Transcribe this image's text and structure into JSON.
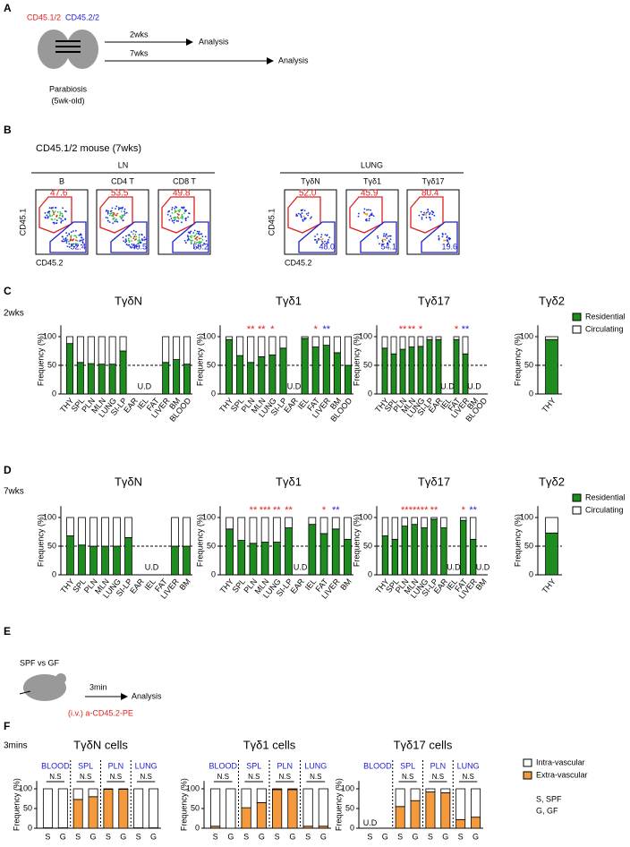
{
  "panel_labels": [
    "A",
    "B",
    "C",
    "D",
    "E",
    "F"
  ],
  "row_labels": [
    "2wks",
    "7wks",
    "3mins"
  ],
  "panel_a": {
    "donor1": "CD45.1/2",
    "donor2": "CD45.2/2",
    "arrows": [
      {
        "label": "2wks",
        "target": "Analysis"
      },
      {
        "label": "7wks",
        "target": "Analysis"
      }
    ],
    "caption": "Parabiosis",
    "caption2": "(5wk-old)"
  },
  "panel_b": {
    "title": "CD45.1/2 mouse (7wks)",
    "groups": [
      {
        "label": "LN",
        "y_label": "CD45.1",
        "x_label": "CD45.2",
        "plots": [
          {
            "label": "B",
            "top": "47.6",
            "bottom": "52.4"
          },
          {
            "label": "CD4 T",
            "top": "53.5",
            "bottom": "46.5"
          },
          {
            "label": "CD8 T",
            "top": "49.8",
            "bottom": "50.2"
          }
        ]
      },
      {
        "label": "LUNG",
        "y_label": "CD45.1",
        "x_label": "CD45.2",
        "plots": [
          {
            "label": "TγδN",
            "top": "52.0",
            "bottom": "48.0"
          },
          {
            "label": "Tγδ1",
            "top": "45.9",
            "bottom": "54.1"
          },
          {
            "label": "Tγδ17",
            "top": "80.4",
            "bottom": "19.6"
          }
        ]
      }
    ]
  },
  "panel_e": {
    "title": "SPF vs GF",
    "arrow_label": "3min",
    "target": "Analysis",
    "injection": "(i.v.) a-CD45.2-PE"
  },
  "chart_data": [
    {
      "type": "bar",
      "stacked": true,
      "title": "TγδN",
      "y_label": "Frequency (%)",
      "ylim": [
        0,
        120
      ],
      "yticks": [
        0,
        50,
        100
      ],
      "refline": 50,
      "categories": [
        "THY",
        "SPL",
        "PLN",
        "MLN",
        "LUNG",
        "SI-LP",
        "EAR",
        "IEL",
        "FAT",
        "LIVER",
        "BM",
        "BLOOD"
      ],
      "series": [
        {
          "color": "#1e8c1e",
          "values": [
            88,
            55,
            53,
            52,
            52,
            75,
            null,
            null,
            null,
            55,
            60,
            52
          ]
        },
        {
          "color": "#ffffff",
          "values": [
            12,
            45,
            47,
            48,
            48,
            25,
            null,
            null,
            null,
            45,
            40,
            48
          ]
        }
      ],
      "notes": [
        null,
        null,
        null,
        null,
        null,
        null,
        null,
        "U.D",
        null,
        null,
        null,
        null
      ],
      "note_colors": [
        null,
        null,
        null,
        null,
        null,
        null,
        null,
        "#000000",
        null,
        null,
        null,
        null
      ]
    },
    {
      "type": "bar",
      "stacked": true,
      "title": "Tγδ1",
      "y_label": "Frequency (%)",
      "ylim": [
        0,
        120
      ],
      "yticks": [
        0,
        50,
        100
      ],
      "refline": 50,
      "categories": [
        "THY",
        "SPL",
        "PLN",
        "MLN",
        "LUNG",
        "SI-LP",
        "EAR",
        "IEL",
        "FAT",
        "LIVER",
        "BM",
        "BLOOD"
      ],
      "series": [
        {
          "color": "#1e8c1e",
          "values": [
            95,
            67,
            55,
            65,
            68,
            80,
            null,
            97,
            82,
            85,
            72,
            50
          ]
        },
        {
          "color": "#ffffff",
          "values": [
            5,
            33,
            45,
            35,
            32,
            20,
            null,
            3,
            18,
            15,
            28,
            50
          ]
        }
      ],
      "notes": [
        null,
        null,
        "**",
        "**",
        "*",
        null,
        "U.D",
        null,
        "*",
        "**",
        null,
        null
      ],
      "note_colors": [
        null,
        null,
        "#e02020",
        "#e02020",
        "#e02020",
        null,
        "#000000",
        null,
        "#e02020",
        "#2020d0",
        null,
        null
      ]
    },
    {
      "type": "bar",
      "stacked": true,
      "title": "Tγδ17",
      "y_label": "Frequency (%)",
      "ylim": [
        0,
        120
      ],
      "yticks": [
        0,
        50,
        100
      ],
      "refline": 50,
      "categories": [
        "THY",
        "SPL",
        "PLN",
        "MLN",
        "LUNG",
        "SI-LP",
        "EAR",
        "IEL",
        "FAT",
        "LIVER",
        "BM",
        "BLOOD"
      ],
      "series": [
        {
          "color": "#1e8c1e",
          "values": [
            80,
            70,
            78,
            82,
            83,
            95,
            95,
            null,
            95,
            70,
            null,
            null
          ]
        },
        {
          "color": "#ffffff",
          "values": [
            20,
            30,
            22,
            18,
            17,
            5,
            5,
            null,
            5,
            30,
            null,
            null
          ]
        }
      ],
      "notes": [
        null,
        null,
        "**",
        "**",
        "*",
        null,
        null,
        "U.D",
        "*",
        "**",
        "U.D",
        null
      ],
      "note_colors": [
        null,
        null,
        "#e02020",
        "#e02020",
        "#e02020",
        null,
        null,
        "#000000",
        "#e02020",
        "#2020d0",
        "#000000",
        null
      ]
    },
    {
      "type": "bar",
      "stacked": true,
      "title": "Tγδ2",
      "y_label": "Frequency (%)",
      "ylim": [
        0,
        120
      ],
      "yticks": [
        0,
        50,
        100
      ],
      "refline": 50,
      "categories": [
        "THY"
      ],
      "legend": "right",
      "series": [
        {
          "name": "Residential",
          "color": "#1e8c1e",
          "values": [
            95
          ]
        },
        {
          "name": "Circulating",
          "color": "#ffffff",
          "values": [
            5
          ]
        }
      ]
    },
    {
      "type": "bar",
      "stacked": true,
      "title": "TγδN",
      "y_label": "Frequency (%)",
      "ylim": [
        0,
        120
      ],
      "yticks": [
        0,
        50,
        100
      ],
      "refline": 50,
      "categories": [
        "THY",
        "SPL",
        "PLN",
        "MLN",
        "LUNG",
        "SI-LP",
        "EAR",
        "IEL",
        "FAT",
        "LIVER",
        "BM"
      ],
      "series": [
        {
          "color": "#1e8c1e",
          "values": [
            68,
            52,
            50,
            50,
            50,
            65,
            null,
            null,
            null,
            50,
            50
          ]
        },
        {
          "color": "#ffffff",
          "values": [
            32,
            48,
            50,
            50,
            50,
            35,
            null,
            null,
            null,
            50,
            50
          ]
        }
      ],
      "notes": [
        null,
        null,
        null,
        null,
        null,
        null,
        null,
        "U.D",
        null,
        null,
        null
      ],
      "note_colors": [
        null,
        null,
        null,
        null,
        null,
        null,
        null,
        "#000000",
        null,
        null,
        null
      ]
    },
    {
      "type": "bar",
      "stacked": true,
      "title": "Tγδ1",
      "y_label": "Frequency (%)",
      "ylim": [
        0,
        120
      ],
      "yticks": [
        0,
        50,
        100
      ],
      "refline": 50,
      "categories": [
        "THY",
        "SPL",
        "PLN",
        "MLN",
        "LUNG",
        "SI-LP",
        "EAR",
        "IEL",
        "FAT",
        "LIVER",
        "BM"
      ],
      "series": [
        {
          "color": "#1e8c1e",
          "values": [
            80,
            60,
            55,
            57,
            57,
            82,
            null,
            88,
            72,
            80,
            62
          ]
        },
        {
          "color": "#ffffff",
          "values": [
            20,
            40,
            45,
            43,
            43,
            18,
            null,
            12,
            28,
            20,
            38
          ]
        }
      ],
      "notes": [
        null,
        null,
        "**",
        "***",
        "**",
        "**",
        "U.D",
        null,
        "*",
        "**",
        null
      ],
      "note_colors": [
        null,
        null,
        "#e02020",
        "#e02020",
        "#e02020",
        "#e02020",
        "#000000",
        null,
        "#e02020",
        "#2020d0",
        null
      ]
    },
    {
      "type": "bar",
      "stacked": true,
      "title": "Tγδ17",
      "y_label": "Frequency (%)",
      "ylim": [
        0,
        120
      ],
      "yticks": [
        0,
        50,
        100
      ],
      "refline": 50,
      "categories": [
        "THY",
        "SPL",
        "PLN",
        "MLN",
        "LUNG",
        "SI-LP",
        "EAR",
        "IEL",
        "FAT",
        "LIVER",
        "BM"
      ],
      "series": [
        {
          "color": "#1e8c1e",
          "values": [
            68,
            62,
            85,
            88,
            82,
            97,
            82,
            null,
            95,
            62,
            null
          ]
        },
        {
          "color": "#ffffff",
          "values": [
            32,
            38,
            15,
            12,
            18,
            3,
            18,
            null,
            5,
            38,
            null
          ]
        }
      ],
      "notes": [
        null,
        null,
        "**",
        "***",
        "**",
        "**",
        null,
        "U.D",
        "*",
        "**",
        "U.D"
      ],
      "note_colors": [
        null,
        null,
        "#e02020",
        "#e02020",
        "#e02020",
        "#e02020",
        null,
        "#000000",
        "#e02020",
        "#2020d0",
        "#000000"
      ]
    },
    {
      "type": "bar",
      "stacked": true,
      "title": "Tγδ2",
      "y_label": "Frequency (%)",
      "ylim": [
        0,
        120
      ],
      "yticks": [
        0,
        50,
        100
      ],
      "refline": 50,
      "categories": [
        "THY"
      ],
      "legend": "right",
      "series": [
        {
          "name": "Residential",
          "color": "#1e8c1e",
          "values": [
            73
          ]
        },
        {
          "name": "Circulating",
          "color": "#ffffff",
          "values": [
            27
          ]
        }
      ]
    },
    {
      "type": "bar",
      "stacked": true,
      "title": "TγδN cells",
      "y_label": "Frequency (%)",
      "ylim": [
        0,
        120
      ],
      "yticks": [
        0,
        50,
        100
      ],
      "categories": [
        "S",
        "G",
        "S",
        "G",
        "S",
        "G",
        "S",
        "G"
      ],
      "groups": [
        "BLOOD",
        "SPL",
        "PLN",
        "LUNG"
      ],
      "group_color": "#2020d0",
      "group_notes": [
        "N.S",
        "N.S",
        "N.S",
        "N.S"
      ],
      "series": [
        {
          "color": "#f59a3c",
          "values": [
            1,
            1,
            73,
            80,
            99,
            99,
            1,
            1
          ]
        },
        {
          "color": "#ffffff",
          "values": [
            99,
            99,
            27,
            20,
            1,
            1,
            99,
            99
          ]
        }
      ]
    },
    {
      "type": "bar",
      "stacked": true,
      "title": "Tγδ1 cells",
      "y_label": "Frequency (%)",
      "ylim": [
        0,
        120
      ],
      "yticks": [
        0,
        50,
        100
      ],
      "categories": [
        "S",
        "G",
        "S",
        "G",
        "S",
        "G",
        "S",
        "G"
      ],
      "groups": [
        "BLOOD",
        "SPL",
        "PLN",
        "LUNG"
      ],
      "group_color": "#2020d0",
      "group_notes": [
        "N.S",
        "N.S",
        "N.S",
        "N.S"
      ],
      "series": [
        {
          "color": "#f59a3c",
          "values": [
            5,
            0,
            52,
            65,
            98,
            98,
            5,
            5
          ]
        },
        {
          "color": "#ffffff",
          "values": [
            95,
            100,
            48,
            35,
            2,
            2,
            95,
            95
          ]
        }
      ]
    },
    {
      "type": "bar",
      "stacked": true,
      "title": "Tγδ17 cells",
      "y_label": "Frequency (%)",
      "ylim": [
        0,
        120
      ],
      "yticks": [
        0,
        50,
        100
      ],
      "categories": [
        "S",
        "G",
        "S",
        "G",
        "S",
        "G",
        "S",
        "G"
      ],
      "groups": [
        "BLOOD",
        "SPL",
        "PLN",
        "LUNG"
      ],
      "group_color": "#2020d0",
      "group_notes": [
        null,
        "N.S",
        "N.S",
        "N.S"
      ],
      "notes": [
        "U.D",
        null,
        null,
        null,
        null,
        null,
        null,
        null
      ],
      "note_colors": [
        "#000000",
        null,
        null,
        null,
        null,
        null,
        null,
        null
      ],
      "legend": "right",
      "legend_notes": [
        "S, SPF",
        "G, GF"
      ],
      "series": [
        {
          "name": "Extra-vascular",
          "color": "#f59a3c",
          "values": [
            null,
            null,
            55,
            70,
            92,
            90,
            22,
            28
          ]
        },
        {
          "name": "Intra-vascular",
          "color": "#ffffff",
          "values": [
            null,
            null,
            45,
            30,
            8,
            10,
            78,
            72
          ]
        }
      ]
    }
  ]
}
